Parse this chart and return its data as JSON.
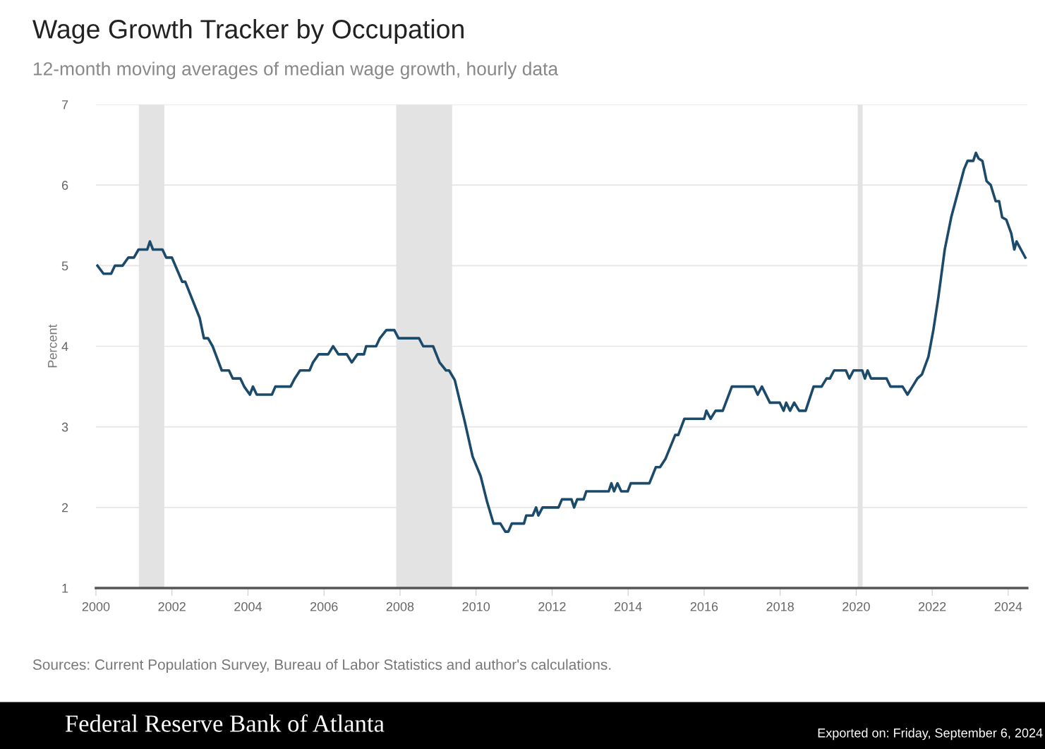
{
  "chart_data": {
    "type": "line",
    "title": "Wage Growth Tracker by Occupation",
    "subtitle": "12-month moving averages of median wage growth, hourly data",
    "ylabel": "Percent",
    "annotations": [
      "Sources: Current Population Survey, Bureau of Labor Statistics and author's calculations.",
      "Federal Reserve Bank of Atlanta",
      "Exported on: Friday, September 6, 2024"
    ],
    "series": [
      {
        "color": "#1b4a6b",
        "x": [
          2000.04,
          2000.2,
          2000.4,
          2000.5,
          2000.7,
          2000.85,
          2001.0,
          2001.12,
          2001.35,
          2001.42,
          2001.5,
          2001.75,
          2001.85,
          2002.0,
          2002.27,
          2002.35,
          2002.73,
          2002.84,
          2002.95,
          2003.07,
          2003.31,
          2003.5,
          2003.6,
          2003.8,
          2003.9,
          2004.05,
          2004.13,
          2004.23,
          2004.63,
          2004.72,
          2005.12,
          2005.23,
          2005.37,
          2005.62,
          2005.71,
          2005.86,
          2006.11,
          2006.24,
          2006.38,
          2006.6,
          2006.73,
          2006.88,
          2007.05,
          2007.11,
          2007.37,
          2007.47,
          2007.64,
          2007.85,
          2007.96,
          2008.5,
          2008.61,
          2008.87,
          2009.04,
          2009.21,
          2009.29,
          2009.44,
          2009.7,
          2009.91,
          2010.12,
          2010.29,
          2010.46,
          2010.64,
          2010.77,
          2010.85,
          2010.94,
          2011.26,
          2011.32,
          2011.49,
          2011.58,
          2011.64,
          2011.75,
          2012.17,
          2012.26,
          2012.51,
          2012.58,
          2012.66,
          2012.83,
          2012.9,
          2013.49,
          2013.56,
          2013.63,
          2013.72,
          2013.82,
          2013.99,
          2014.07,
          2014.56,
          2014.73,
          2014.84,
          2014.98,
          2015.24,
          2015.32,
          2015.48,
          2016.0,
          2016.06,
          2016.17,
          2016.3,
          2016.49,
          2016.73,
          2017.14,
          2017.31,
          2017.41,
          2017.52,
          2017.73,
          2017.99,
          2018.09,
          2018.16,
          2018.26,
          2018.37,
          2018.5,
          2018.67,
          2018.88,
          2019.09,
          2019.22,
          2019.31,
          2019.42,
          2019.73,
          2019.82,
          2019.93,
          2020.16,
          2020.23,
          2020.3,
          2020.39,
          2020.8,
          2020.9,
          2021.22,
          2021.35,
          2021.48,
          2021.61,
          2021.73,
          2021.9,
          2022.03,
          2022.16,
          2022.33,
          2022.5,
          2022.67,
          2022.84,
          2022.93,
          2023.08,
          2023.15,
          2023.22,
          2023.32,
          2023.43,
          2023.54,
          2023.67,
          2023.76,
          2023.84,
          2023.95,
          2024.08,
          2024.16,
          2024.22,
          2024.45
        ],
        "values": [
          5.0,
          4.9,
          4.9,
          5.0,
          5.0,
          5.1,
          5.1,
          5.2,
          5.2,
          5.3,
          5.2,
          5.2,
          5.1,
          5.1,
          4.8,
          4.8,
          4.35,
          4.1,
          4.1,
          4.0,
          3.7,
          3.7,
          3.6,
          3.6,
          3.5,
          3.4,
          3.5,
          3.4,
          3.4,
          3.5,
          3.5,
          3.6,
          3.7,
          3.7,
          3.8,
          3.9,
          3.9,
          4.0,
          3.9,
          3.9,
          3.8,
          3.9,
          3.9,
          4.0,
          4.0,
          4.1,
          4.2,
          4.2,
          4.1,
          4.1,
          4.0,
          4.0,
          3.8,
          3.7,
          3.7,
          3.58,
          3.07,
          2.63,
          2.39,
          2.07,
          1.8,
          1.8,
          1.7,
          1.7,
          1.8,
          1.8,
          1.9,
          1.9,
          2.0,
          1.9,
          2.0,
          2.0,
          2.1,
          2.1,
          2.0,
          2.1,
          2.1,
          2.2,
          2.2,
          2.3,
          2.2,
          2.3,
          2.2,
          2.2,
          2.3,
          2.3,
          2.5,
          2.5,
          2.6,
          2.9,
          2.9,
          3.1,
          3.1,
          3.2,
          3.1,
          3.2,
          3.2,
          3.5,
          3.5,
          3.5,
          3.4,
          3.5,
          3.3,
          3.3,
          3.2,
          3.3,
          3.2,
          3.3,
          3.2,
          3.2,
          3.5,
          3.5,
          3.6,
          3.6,
          3.7,
          3.7,
          3.6,
          3.7,
          3.7,
          3.6,
          3.7,
          3.6,
          3.6,
          3.5,
          3.5,
          3.4,
          3.5,
          3.6,
          3.65,
          3.87,
          4.2,
          4.6,
          5.2,
          5.6,
          5.9,
          6.2,
          6.3,
          6.3,
          6.4,
          6.33,
          6.3,
          6.05,
          6.0,
          5.8,
          5.8,
          5.6,
          5.57,
          5.4,
          5.2,
          5.3,
          5.1
        ]
      }
    ],
    "bands": [
      {
        "axis": "x",
        "from": 2001.13,
        "to": 2001.8,
        "color": "#e3e3e3"
      },
      {
        "axis": "x",
        "from": 2007.9,
        "to": 2009.37,
        "color": "#e3e3e3"
      },
      {
        "axis": "x",
        "from": 2020.04,
        "to": 2020.17,
        "color": "#e3e3e3"
      }
    ],
    "xlim": [
      2000,
      2024.5
    ],
    "xticks": [
      2000,
      2002,
      2004,
      2006,
      2008,
      2010,
      2012,
      2014,
      2016,
      2018,
      2020,
      2022,
      2024
    ],
    "ylim": [
      1,
      7
    ],
    "yticks": [
      1,
      2,
      3,
      4,
      5,
      6,
      7
    ],
    "grid": "y",
    "line_style": "solid",
    "marker": "none"
  }
}
